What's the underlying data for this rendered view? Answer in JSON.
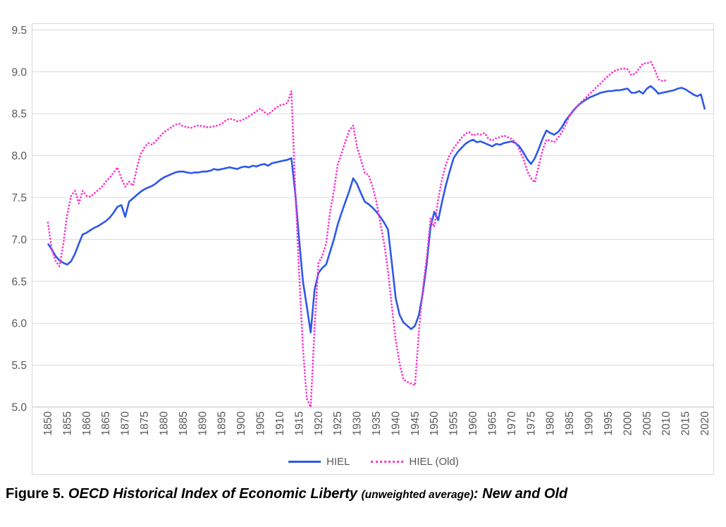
{
  "figure": {
    "caption_prefix": "Figure 5.",
    "caption_title": "OECD Historical Index of Economic Liberty",
    "caption_paren": "(unweighted average)",
    "caption_suffix": ": New and Old"
  },
  "colors": {
    "hiel_blue": "#2e58e8",
    "hiel_old_pink": "#ff33cc",
    "gridline": "#d9d9d9",
    "axis_line": "#bfbfbf",
    "tick_label": "#595959"
  },
  "chart_data": {
    "type": "line",
    "title": "",
    "xlabel": "",
    "ylabel": "",
    "xlim": [
      1850,
      2020
    ],
    "ylim": [
      5.0,
      9.5
    ],
    "grid": true,
    "legend_position": "bottom",
    "y_ticks": [
      9.5,
      9.0,
      8.5,
      8.0,
      7.5,
      7.0,
      6.5,
      6.0,
      5.5,
      5.0
    ],
    "x_ticks": [
      1850,
      1855,
      1860,
      1865,
      1870,
      1875,
      1880,
      1885,
      1890,
      1895,
      1900,
      1905,
      1910,
      1915,
      1920,
      1925,
      1930,
      1935,
      1940,
      1945,
      1950,
      1955,
      1960,
      1965,
      1970,
      1975,
      1980,
      1985,
      1990,
      1995,
      2000,
      2005,
      2010,
      2015,
      2020
    ],
    "series": [
      {
        "name": "HIEL",
        "style": "solid",
        "color": "#2e58e8",
        "x_start": 1850,
        "x_end": 2020,
        "values": [
          6.95,
          6.88,
          6.8,
          6.75,
          6.72,
          6.7,
          6.74,
          6.83,
          6.95,
          7.06,
          7.08,
          7.11,
          7.14,
          7.16,
          7.19,
          7.22,
          7.26,
          7.32,
          7.39,
          7.41,
          7.27,
          7.45,
          7.49,
          7.53,
          7.57,
          7.6,
          7.62,
          7.64,
          7.67,
          7.71,
          7.74,
          7.76,
          7.78,
          7.8,
          7.81,
          7.81,
          7.8,
          7.79,
          7.8,
          7.8,
          7.81,
          7.81,
          7.82,
          7.84,
          7.83,
          7.84,
          7.85,
          7.86,
          7.85,
          7.84,
          7.86,
          7.87,
          7.86,
          7.88,
          7.87,
          7.89,
          7.9,
          7.88,
          7.91,
          7.92,
          7.93,
          7.94,
          7.95,
          7.97,
          7.55,
          7.0,
          6.5,
          6.2,
          5.89,
          6.4,
          6.6,
          6.66,
          6.7,
          6.85,
          7.0,
          7.18,
          7.32,
          7.45,
          7.58,
          7.73,
          7.66,
          7.55,
          7.45,
          7.42,
          7.38,
          7.33,
          7.27,
          7.2,
          7.12,
          6.72,
          6.3,
          6.1,
          6.01,
          5.97,
          5.93,
          5.97,
          6.1,
          6.36,
          6.7,
          7.15,
          7.33,
          7.23,
          7.45,
          7.65,
          7.82,
          7.97,
          8.04,
          8.09,
          8.14,
          8.17,
          8.19,
          8.16,
          8.17,
          8.15,
          8.13,
          8.11,
          8.14,
          8.13,
          8.15,
          8.16,
          8.17,
          8.15,
          8.11,
          8.04,
          7.96,
          7.9,
          7.97,
          8.08,
          8.2,
          8.3,
          8.27,
          8.25,
          8.28,
          8.34,
          8.42,
          8.48,
          8.54,
          8.59,
          8.63,
          8.66,
          8.69,
          8.71,
          8.73,
          8.75,
          8.76,
          8.77,
          8.77,
          8.78,
          8.78,
          8.79,
          8.8,
          8.75,
          8.75,
          8.77,
          8.74,
          8.8,
          8.83,
          8.79,
          8.74,
          8.75,
          8.76,
          8.77,
          8.78,
          8.8,
          8.81,
          8.79,
          8.76,
          8.73,
          8.71,
          8.73,
          8.55
        ]
      },
      {
        "name": "HIEL (Old)",
        "style": "dotted",
        "color": "#ff33cc",
        "x_start": 1850,
        "x_end": 2010,
        "values": [
          7.2,
          6.88,
          6.74,
          6.68,
          6.95,
          7.3,
          7.52,
          7.58,
          7.43,
          7.58,
          7.52,
          7.51,
          7.55,
          7.59,
          7.63,
          7.69,
          7.74,
          7.8,
          7.86,
          7.73,
          7.63,
          7.69,
          7.64,
          7.85,
          8.02,
          8.1,
          8.15,
          8.13,
          8.18,
          8.23,
          8.28,
          8.31,
          8.34,
          8.37,
          8.38,
          8.35,
          8.34,
          8.33,
          8.35,
          8.36,
          8.35,
          8.34,
          8.34,
          8.35,
          8.36,
          8.38,
          8.42,
          8.44,
          8.43,
          8.41,
          8.42,
          8.44,
          8.47,
          8.5,
          8.53,
          8.56,
          8.52,
          8.49,
          8.53,
          8.57,
          8.6,
          8.61,
          8.63,
          8.77,
          7.6,
          6.6,
          5.7,
          5.1,
          5.0,
          5.95,
          6.72,
          6.8,
          6.95,
          7.32,
          7.58,
          7.9,
          8.03,
          8.17,
          8.3,
          8.36,
          8.1,
          7.95,
          7.79,
          7.77,
          7.63,
          7.45,
          7.2,
          6.95,
          6.63,
          6.2,
          5.8,
          5.52,
          5.33,
          5.3,
          5.28,
          5.26,
          5.9,
          6.4,
          6.78,
          7.25,
          7.15,
          7.48,
          7.72,
          7.9,
          8.01,
          8.09,
          8.15,
          8.21,
          8.26,
          8.28,
          8.24,
          8.26,
          8.25,
          8.27,
          8.2,
          8.18,
          8.21,
          8.22,
          8.24,
          8.22,
          8.2,
          8.16,
          8.07,
          7.97,
          7.82,
          7.73,
          7.68,
          7.88,
          8.06,
          8.19,
          8.18,
          8.16,
          8.21,
          8.28,
          8.37,
          8.48,
          8.53,
          8.59,
          8.64,
          8.68,
          8.73,
          8.77,
          8.82,
          8.86,
          8.91,
          8.95,
          8.99,
          9.02,
          9.03,
          9.04,
          9.03,
          8.96,
          8.98,
          9.04,
          9.1,
          9.1,
          9.12,
          9.03,
          8.91,
          8.89,
          8.9
        ]
      }
    ]
  }
}
